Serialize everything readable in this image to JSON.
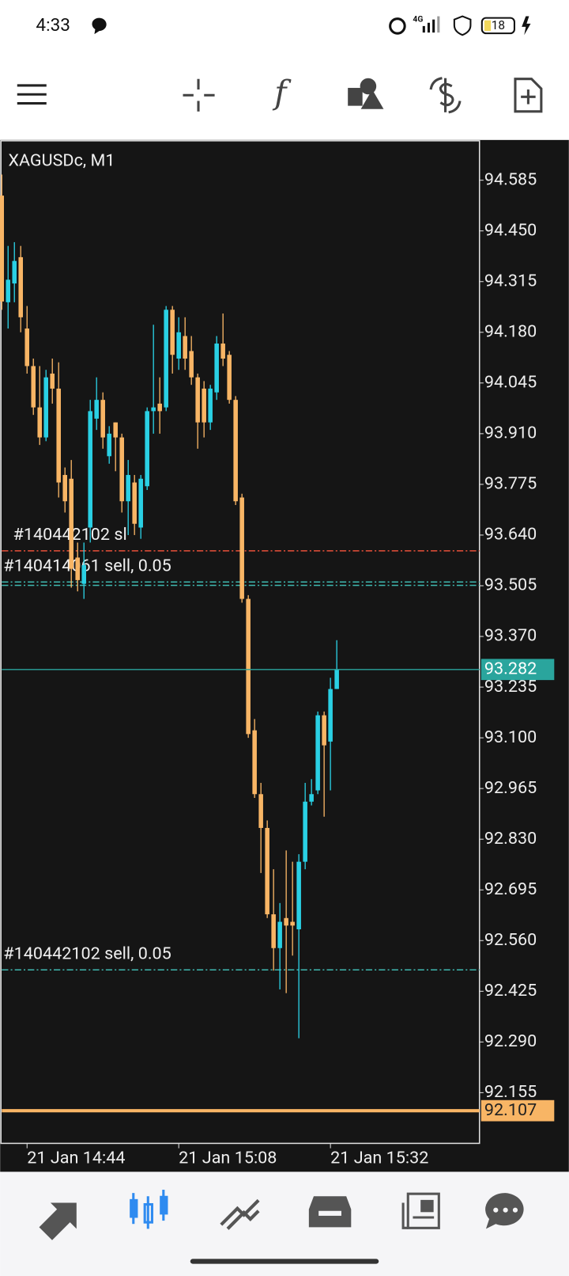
{
  "status_bar": {
    "time": "4:33",
    "network": "4G",
    "battery": "18"
  },
  "chart_data": {
    "type": "candlestick",
    "symbol": "XAGUSDc, M1",
    "up_color": "#2ad0e4",
    "down_color": "#f8b565",
    "open": [
      94.544,
      94.26,
      94.31,
      94.38,
      94.19,
      94.09,
      93.98,
      93.9,
      94.07,
      94.03,
      93.8,
      93.79,
      93.58,
      93.51,
      93.66,
      93.95,
      94.0,
      93.85,
      93.94,
      93.9,
      93.73,
      93.78,
      93.66,
      93.77,
      93.97,
      93.99,
      93.98,
      94.24,
      94.11,
      94.17,
      94.13,
      94.06,
      94.03,
      93.94,
      94.02,
      94.15,
      94.12,
      94.0,
      93.74,
      93.47,
      93.12,
      92.95,
      92.86,
      92.63,
      92.54,
      92.62,
      92.61,
      92.59,
      92.77,
      92.93,
      92.96,
      93.16,
      93.09,
      93.23
    ],
    "high": [
      94.6,
      94.41,
      94.42,
      94.41,
      94.25,
      94.11,
      94.09,
      94.08,
      94.11,
      94.1,
      93.82,
      93.84,
      93.62,
      93.62,
      94.0,
      94.06,
      94.02,
      93.93,
      93.94,
      93.91,
      93.84,
      93.8,
      93.8,
      93.98,
      94.2,
      94.06,
      94.25,
      94.25,
      94.22,
      94.22,
      94.17,
      94.07,
      94.05,
      94.04,
      94.17,
      94.23,
      94.13,
      94.01,
      93.75,
      93.48,
      93.15,
      92.98,
      92.88,
      92.75,
      92.66,
      92.8,
      92.77,
      92.79,
      92.98,
      92.99,
      93.17,
      93.17,
      93.26,
      93.36
    ],
    "low": [
      94.24,
      94.19,
      94.26,
      94.18,
      94.07,
      93.96,
      93.88,
      93.89,
      93.99,
      93.74,
      93.7,
      93.5,
      93.49,
      93.47,
      93.62,
      93.92,
      93.87,
      93.83,
      93.81,
      93.7,
      93.64,
      93.64,
      93.63,
      93.76,
      93.91,
      93.91,
      93.97,
      94.07,
      94.08,
      94.08,
      94.04,
      93.87,
      93.9,
      93.92,
      94.0,
      94.09,
      93.99,
      93.72,
      93.46,
      93.1,
      92.94,
      92.74,
      92.62,
      92.48,
      92.43,
      92.42,
      92.52,
      92.3,
      92.75,
      92.92,
      92.95,
      92.89,
      92.96,
      93.23
    ],
    "close": [
      94.262,
      94.32,
      94.37,
      94.22,
      94.09,
      93.98,
      93.9,
      94.06,
      94.03,
      93.78,
      93.73,
      93.55,
      93.52,
      93.56,
      93.97,
      94.0,
      93.9,
      93.91,
      93.9,
      93.73,
      93.8,
      93.67,
      93.79,
      93.97,
      93.98,
      93.97,
      94.24,
      94.12,
      94.18,
      94.11,
      94.06,
      93.94,
      93.94,
      94.03,
      94.15,
      94.11,
      94.0,
      93.73,
      93.47,
      93.11,
      92.95,
      92.86,
      92.63,
      92.54,
      92.61,
      92.6,
      92.6,
      92.77,
      92.93,
      92.95,
      93.16,
      93.08,
      93.23,
      93.282
    ],
    "ylim": [
      92.02,
      94.69
    ],
    "yticks": [
      94.585,
      {
        "value": 94.45,
        "label": "94.450"
      },
      94.315,
      {
        "value": 94.18,
        "label": "94.180"
      },
      94.045,
      {
        "value": 93.91,
        "label": "93.910"
      },
      93.775,
      {
        "value": 93.64,
        "label": "93.640"
      },
      93.505,
      {
        "value": 93.37,
        "label": "93.370"
      },
      93.235,
      {
        "value": 93.1,
        "label": "93.100"
      },
      92.965,
      {
        "value": 92.83,
        "label": "92.830"
      },
      92.695,
      {
        "value": 92.56,
        "label": "92.560"
      },
      92.425,
      {
        "value": 92.29,
        "label": "92.290"
      },
      92.155
    ],
    "xticks": [
      {
        "value": 4,
        "label": "21 Jan 14:44"
      },
      {
        "value": 28,
        "label": "21 Jan 15:08"
      },
      {
        "value": 52,
        "label": "21 Jan 15:32"
      }
    ],
    "levels": [
      {
        "label": "#140442102 sl",
        "value": 93.598,
        "color": "#e8503a"
      },
      {
        "label": "#140414061 sell, 0.05",
        "value": 93.515,
        "color": "#3fb8b0"
      },
      {
        "value": 93.506,
        "color": "#3fb8b0"
      },
      {
        "label": "#140442102 sell, 0.05",
        "value": 92.482,
        "color": "#3fb8b0"
      }
    ],
    "bid": {
      "value": 93.282,
      "color": "#2aa59d"
    },
    "ask": {
      "value": 92.107,
      "color": "#f8b565"
    }
  }
}
